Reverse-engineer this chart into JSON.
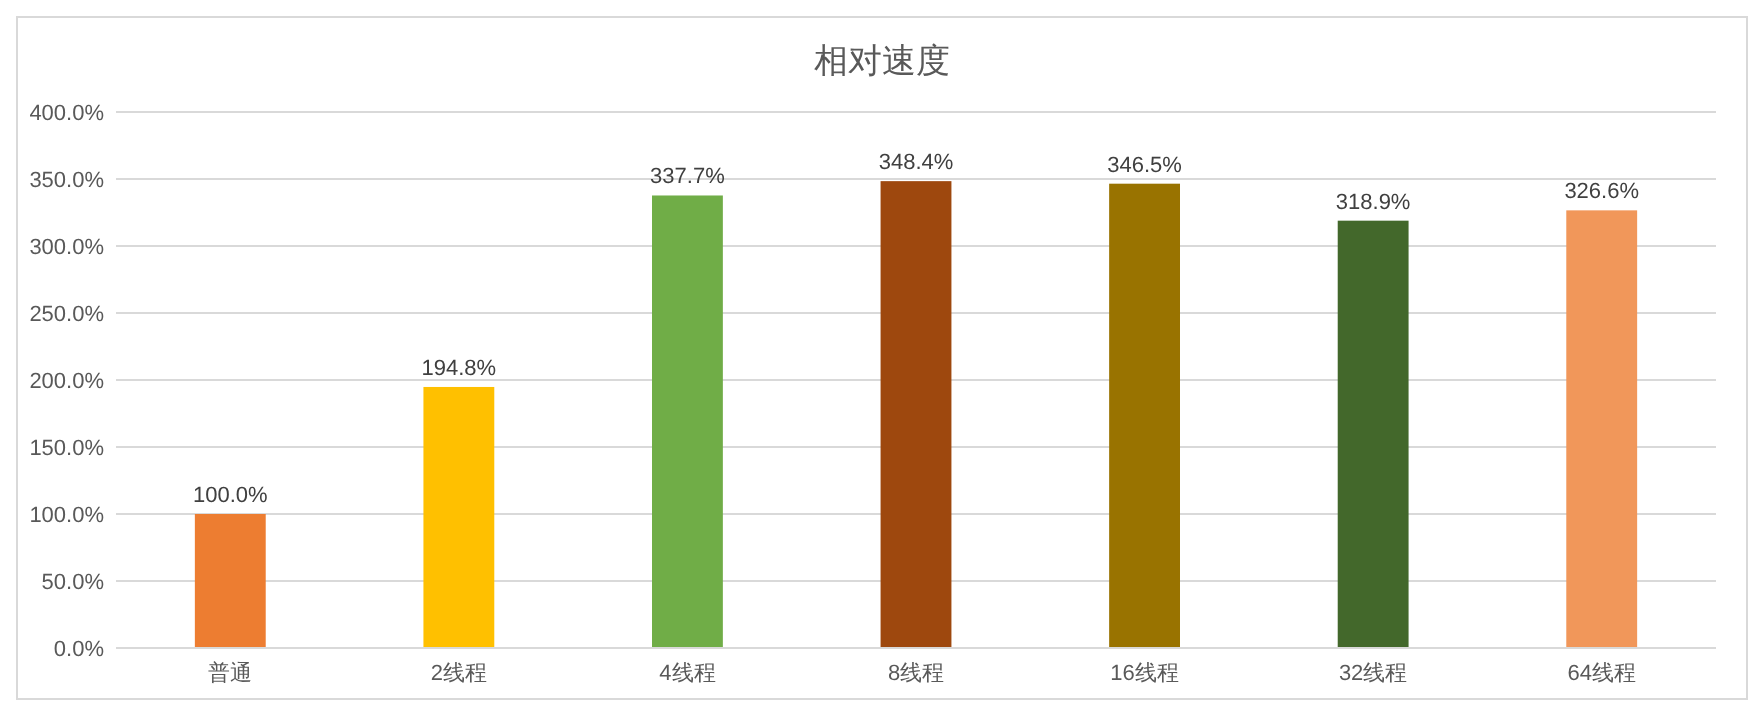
{
  "chart_data": {
    "type": "bar",
    "title": "相对速度",
    "categories": [
      "普通",
      "2线程",
      "4线程",
      "8线程",
      "16线程",
      "32线程",
      "64线程"
    ],
    "values": [
      100.0,
      194.8,
      337.7,
      348.4,
      346.5,
      318.9,
      326.6
    ],
    "colors": [
      "#ed7d31",
      "#ffc000",
      "#70ad47",
      "#9e480e",
      "#997300",
      "#43682b",
      "#f1975a"
    ],
    "value_labels": [
      "100.0%",
      "194.8%",
      "337.7%",
      "348.4%",
      "346.5%",
      "318.9%",
      "326.6%"
    ],
    "ylim": [
      0,
      400
    ],
    "yticks": [
      {
        "value": 0,
        "label": "0.0%"
      },
      {
        "value": 50,
        "label": "50.0%"
      },
      {
        "value": 100,
        "label": "100.0%"
      },
      {
        "value": 150,
        "label": "150.0%"
      },
      {
        "value": 200,
        "label": "200.0%"
      },
      {
        "value": 250,
        "label": "250.0%"
      },
      {
        "value": 300,
        "label": "300.0%"
      },
      {
        "value": 350,
        "label": "350.0%"
      },
      {
        "value": 400,
        "label": "400.0%"
      }
    ],
    "grid": "y"
  }
}
